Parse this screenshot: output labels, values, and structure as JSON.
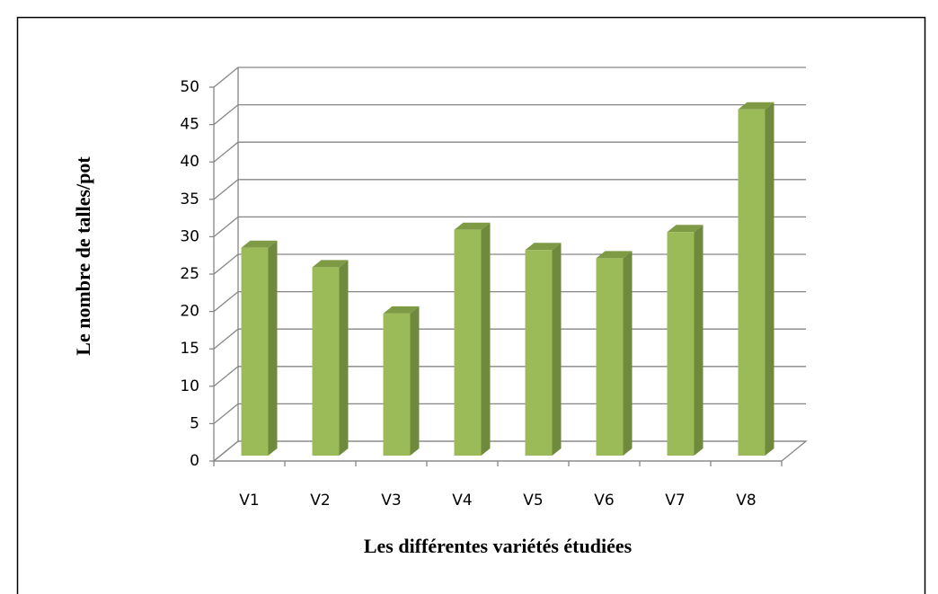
{
  "chart_data": {
    "type": "bar",
    "x_label": "Les différentes variétés étudiées",
    "y_label": "Le nombre de talles/pot",
    "categories": [
      "V1",
      "V2",
      "V3",
      "V4",
      "V5",
      "V6",
      "V7",
      "V8"
    ],
    "values": [
      27.8,
      25.2,
      19,
      30.2,
      27.5,
      26.4,
      29.9,
      46.3
    ],
    "color": "#9bbb59",
    "ylim": [
      0,
      50
    ],
    "yticks": [
      0,
      5,
      10,
      15,
      20,
      25,
      30,
      35,
      40,
      45,
      50
    ],
    "grid": true
  }
}
